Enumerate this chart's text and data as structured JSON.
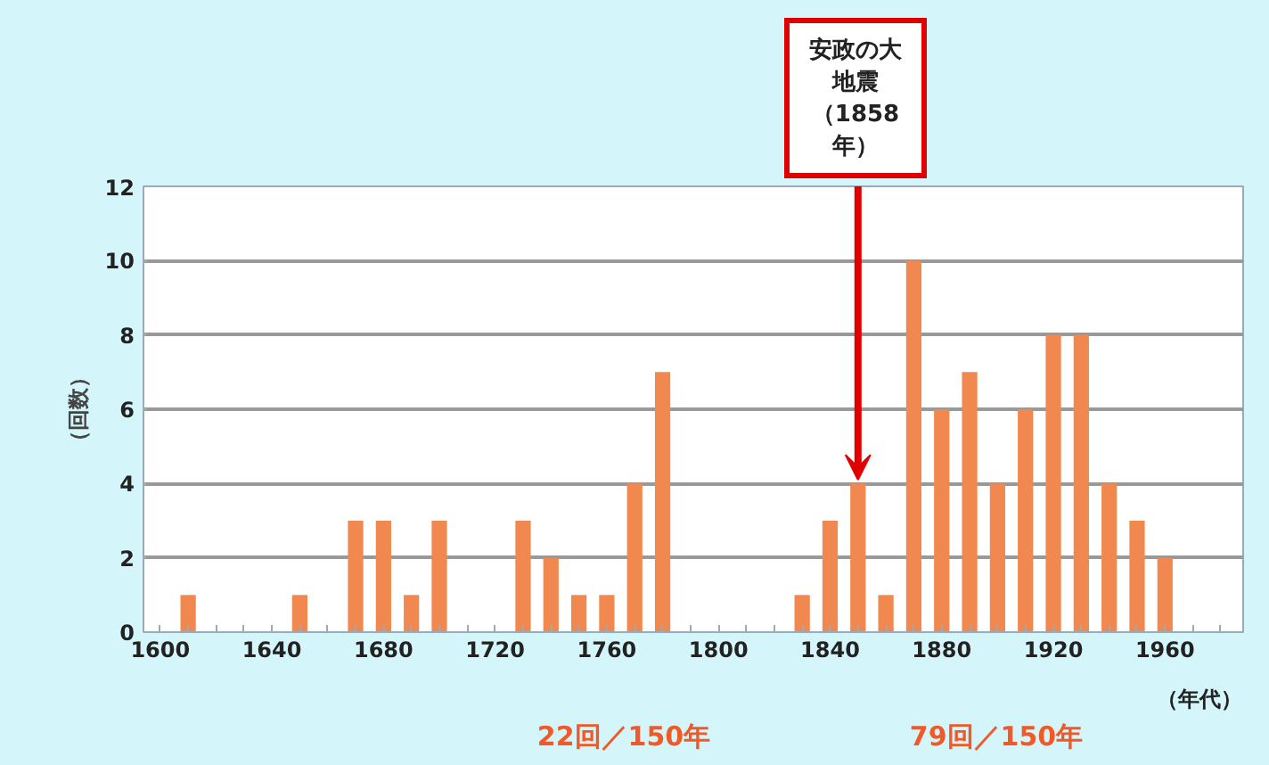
{
  "chart_data": {
    "type": "bar",
    "x": [
      1610,
      1650,
      1670,
      1680,
      1690,
      1700,
      1730,
      1740,
      1750,
      1760,
      1770,
      1780,
      1830,
      1840,
      1850,
      1860,
      1870,
      1880,
      1890,
      1900,
      1910,
      1920,
      1930,
      1940,
      1950,
      1960
    ],
    "values": [
      1,
      1,
      3,
      3,
      1,
      3,
      3,
      2,
      1,
      1,
      4,
      7,
      1,
      3,
      4,
      1,
      10,
      6,
      7,
      4,
      6,
      8,
      8,
      4,
      3,
      2
    ],
    "color": "#f08850",
    "ylabel": "（回数）",
    "xlabel": "（年代）",
    "xlim": [
      1594,
      1988
    ],
    "ylim": [
      0,
      12
    ],
    "xticks": [
      1600,
      {
        "value": 1610,
        "label": null
      },
      {
        "value": 1620,
        "label": null
      },
      {
        "value": 1630,
        "label": null
      },
      1640,
      {
        "value": 1650,
        "label": null
      },
      {
        "value": 1660,
        "label": null
      },
      {
        "value": 1670,
        "label": null
      },
      1680,
      {
        "value": 1690,
        "label": null
      },
      {
        "value": 1700,
        "label": null
      },
      {
        "value": 1710,
        "label": null
      },
      1720,
      {
        "value": 1730,
        "label": null
      },
      {
        "value": 1740,
        "label": null
      },
      {
        "value": 1750,
        "label": null
      },
      1760,
      {
        "value": 1770,
        "label": null
      },
      {
        "value": 1780,
        "label": null
      },
      {
        "value": 1790,
        "label": null
      },
      1800,
      {
        "value": 1810,
        "label": null
      },
      {
        "value": 1820,
        "label": null
      },
      {
        "value": 1830,
        "label": null
      },
      1840,
      {
        "value": 1850,
        "label": null
      },
      {
        "value": 1860,
        "label": null
      },
      {
        "value": 1870,
        "label": null
      },
      1880,
      {
        "value": 1890,
        "label": null
      },
      {
        "value": 1900,
        "label": null
      },
      {
        "value": 1910,
        "label": null
      },
      1920,
      {
        "value": 1930,
        "label": null
      },
      {
        "value": 1940,
        "label": null
      },
      {
        "value": 1950,
        "label": null
      },
      1960,
      {
        "value": 1970,
        "label": null
      },
      {
        "value": 1980,
        "label": null
      }
    ],
    "yticks": [
      0,
      2,
      4,
      6,
      8,
      10,
      12
    ],
    "grid": "y",
    "annotations": [
      {
        "text": "安政の大地震（1858年）",
        "x": 1850,
        "y": 4
      },
      "22回／150年",
      "79回／150年"
    ]
  }
}
